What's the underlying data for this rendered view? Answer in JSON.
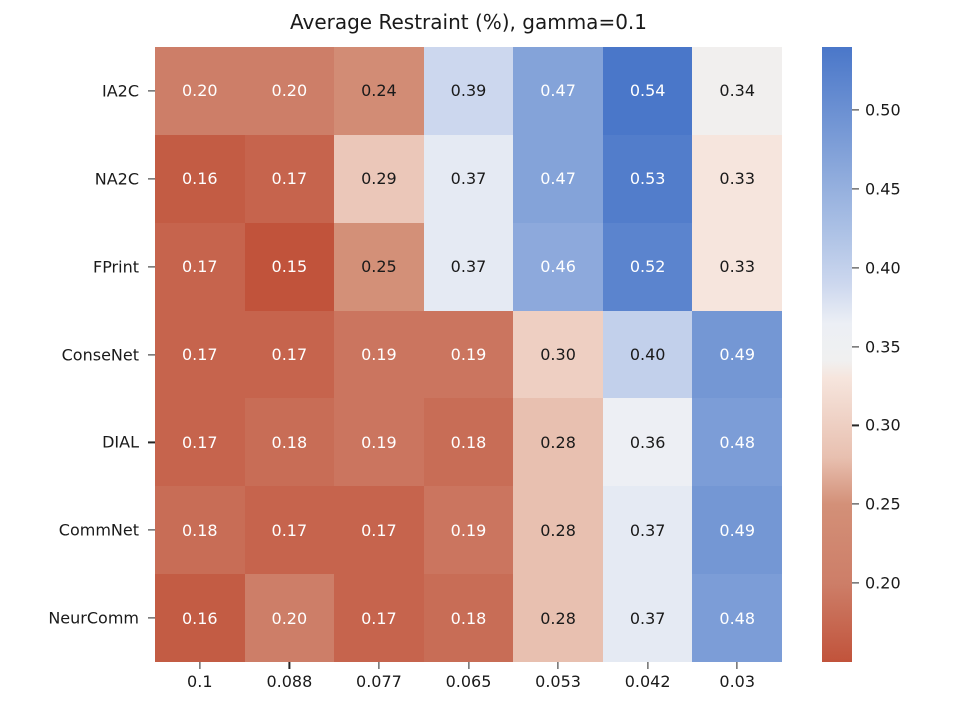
{
  "chart_data": {
    "type": "heatmap",
    "title": "Average Restraint (%), gamma=0.1",
    "rows": [
      "IA2C",
      "NA2C",
      "FPrint",
      "ConseNet",
      "DIAL",
      "CommNet",
      "NeurComm"
    ],
    "columns": [
      "0.1",
      "0.088",
      "0.077",
      "0.065",
      "0.053",
      "0.042",
      "0.03"
    ],
    "values": [
      [
        0.2,
        0.2,
        0.24,
        0.39,
        0.47,
        0.54,
        0.34
      ],
      [
        0.16,
        0.17,
        0.29,
        0.37,
        0.47,
        0.53,
        0.33
      ],
      [
        0.17,
        0.15,
        0.25,
        0.37,
        0.46,
        0.52,
        0.33
      ],
      [
        0.17,
        0.17,
        0.19,
        0.19,
        0.3,
        0.4,
        0.49
      ],
      [
        0.17,
        0.18,
        0.19,
        0.18,
        0.28,
        0.36,
        0.48
      ],
      [
        0.18,
        0.17,
        0.17,
        0.19,
        0.28,
        0.37,
        0.49
      ],
      [
        0.16,
        0.2,
        0.17,
        0.18,
        0.28,
        0.37,
        0.48
      ]
    ],
    "value_decimals": 2,
    "vmin": 0.15,
    "vmax": 0.54,
    "colorbar_ticks": [
      0.5,
      0.45,
      0.4,
      0.35,
      0.3,
      0.25,
      0.2
    ],
    "colorbar_tick_labels": [
      "0.50",
      "0.45",
      "0.40",
      "0.35",
      "0.30",
      "0.25",
      "0.20"
    ],
    "colorbar_position": "right",
    "grid": false,
    "annotation_colors": {
      "light": "#ffffff",
      "dark": "#1a1a1a"
    },
    "colormap_stops": [
      [
        0.0,
        "#c1533b"
      ],
      [
        0.128,
        "#cd7e68"
      ],
      [
        0.256,
        "#d39078"
      ],
      [
        0.333,
        "#e8c0b0"
      ],
      [
        0.462,
        "#f6e5dd"
      ],
      [
        0.49,
        "#f0f0f0"
      ],
      [
        0.55,
        "#eceff5"
      ],
      [
        0.615,
        "#ccd7ee"
      ],
      [
        0.7,
        "#acc1e5"
      ],
      [
        0.821,
        "#84a3d9"
      ],
      [
        1.0,
        "#4a77c9"
      ]
    ]
  }
}
